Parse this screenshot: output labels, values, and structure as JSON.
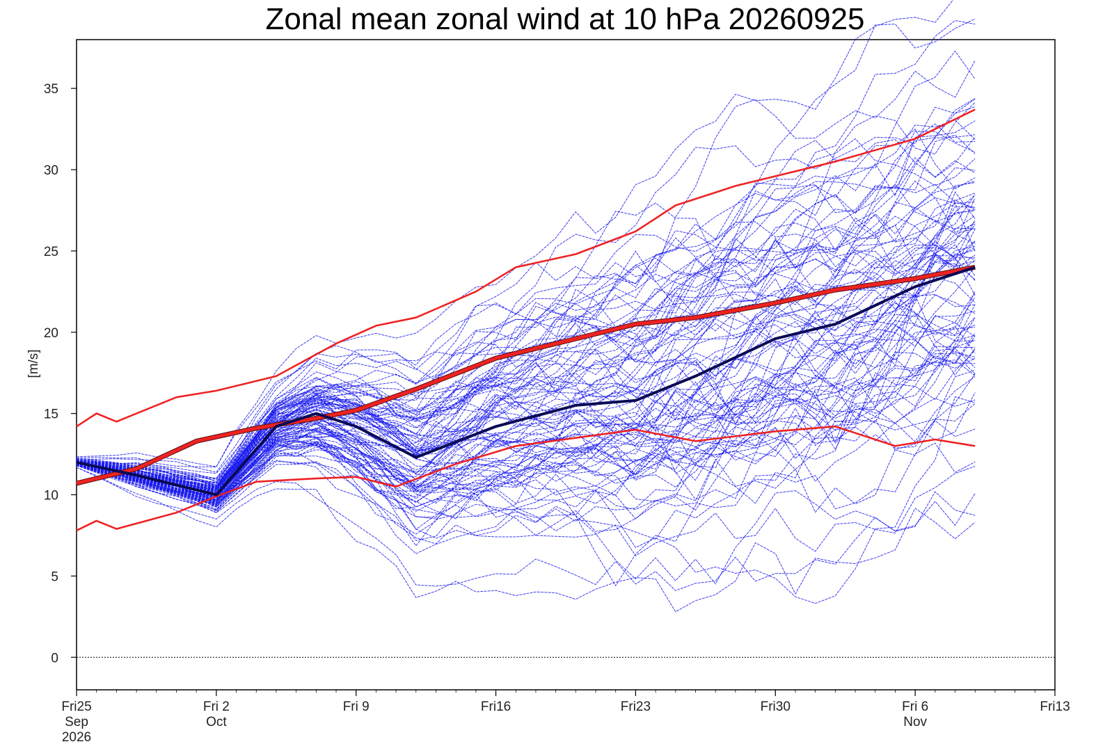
{
  "chart_data": {
    "type": "line",
    "title": "Zonal mean zonal wind at 10 hPa 20260925",
    "ylabel": "[m/s]",
    "xlabel": "",
    "xlim": [
      "2026-09-25",
      "2026-11-13"
    ],
    "ylim": [
      -2,
      38
    ],
    "y_ticks": [
      0,
      5,
      10,
      15,
      20,
      25,
      30,
      35
    ],
    "x_ticks": [
      {
        "date": "2026-09-25",
        "lines": [
          "Fri25",
          "Sep",
          "2026"
        ]
      },
      {
        "date": "2026-10-02",
        "lines": [
          "Fri 2",
          "Oct"
        ]
      },
      {
        "date": "2026-10-09",
        "lines": [
          "Fri 9"
        ]
      },
      {
        "date": "2026-10-16",
        "lines": [
          "Fri16"
        ]
      },
      {
        "date": "2026-10-23",
        "lines": [
          "Fri23"
        ]
      },
      {
        "date": "2026-10-30",
        "lines": [
          "Fri30"
        ]
      },
      {
        "date": "2026-11-06",
        "lines": [
          "Fri 6",
          "Nov"
        ]
      },
      {
        "date": "2026-11-13",
        "lines": [
          "Fri13"
        ]
      }
    ],
    "reference_line": {
      "y": 0,
      "style": "dotted"
    },
    "grid": false,
    "legend": "none",
    "colors": {
      "ensemble": "#1a1aee",
      "ensemble_mean": "#0a0a55",
      "climatology": "#ee2222"
    },
    "ensemble_members": 100,
    "ensemble_seed": 20260925,
    "series": [
      {
        "role": "ensemble_mean",
        "x": [
          "2026-09-25",
          "2026-09-28",
          "2026-10-02",
          "2026-10-05",
          "2026-10-07",
          "2026-10-09",
          "2026-10-12",
          "2026-10-16",
          "2026-10-20",
          "2026-10-23",
          "2026-10-26",
          "2026-10-30",
          "2026-11-02",
          "2026-11-06",
          "2026-11-09"
        ],
        "values": [
          12,
          11.2,
          10.0,
          14.2,
          15.0,
          14.2,
          12.3,
          14.2,
          15.5,
          15.8,
          17.3,
          19.6,
          20.5,
          22.8,
          24
        ]
      },
      {
        "role": "climatology_mean",
        "x": [
          "2026-09-25",
          "2026-09-28",
          "2026-10-01",
          "2026-10-04",
          "2026-10-07",
          "2026-10-09",
          "2026-10-12",
          "2026-10-16",
          "2026-10-19",
          "2026-10-23",
          "2026-10-26",
          "2026-10-30",
          "2026-11-02",
          "2026-11-06",
          "2026-11-09"
        ],
        "values": [
          10.7,
          11.6,
          13.3,
          14.1,
          14.7,
          15.2,
          16.5,
          18.4,
          19.3,
          20.5,
          20.9,
          21.8,
          22.6,
          23.3,
          24.0
        ]
      },
      {
        "role": "climatology_upper",
        "x": [
          "2026-09-25",
          "2026-09-26",
          "2026-09-27",
          "2026-09-30",
          "2026-10-02",
          "2026-10-05",
          "2026-10-08",
          "2026-10-10",
          "2026-10-12",
          "2026-10-15",
          "2026-10-17",
          "2026-10-20",
          "2026-10-23",
          "2026-10-25",
          "2026-10-28",
          "2026-10-30",
          "2026-11-02",
          "2026-11-06",
          "2026-11-09"
        ],
        "values": [
          14.2,
          15.0,
          14.5,
          16.0,
          16.4,
          17.3,
          19.3,
          20.4,
          20.9,
          22.5,
          24.0,
          24.8,
          26.2,
          27.8,
          29.0,
          29.6,
          30.5,
          31.9,
          33.7
        ]
      },
      {
        "role": "climatology_lower",
        "x": [
          "2026-09-25",
          "2026-09-26",
          "2026-09-27",
          "2026-09-30",
          "2026-10-02",
          "2026-10-04",
          "2026-10-07",
          "2026-10-09",
          "2026-10-11",
          "2026-10-14",
          "2026-10-17",
          "2026-10-20",
          "2026-10-23",
          "2026-10-26",
          "2026-10-30",
          "2026-11-02",
          "2026-11-05",
          "2026-11-07",
          "2026-11-09"
        ],
        "values": [
          7.8,
          8.4,
          7.9,
          8.9,
          9.9,
          10.8,
          11.0,
          11.1,
          10.5,
          11.9,
          13.0,
          13.5,
          14.0,
          13.3,
          13.9,
          14.2,
          13.0,
          13.4,
          13.0
        ]
      }
    ]
  }
}
